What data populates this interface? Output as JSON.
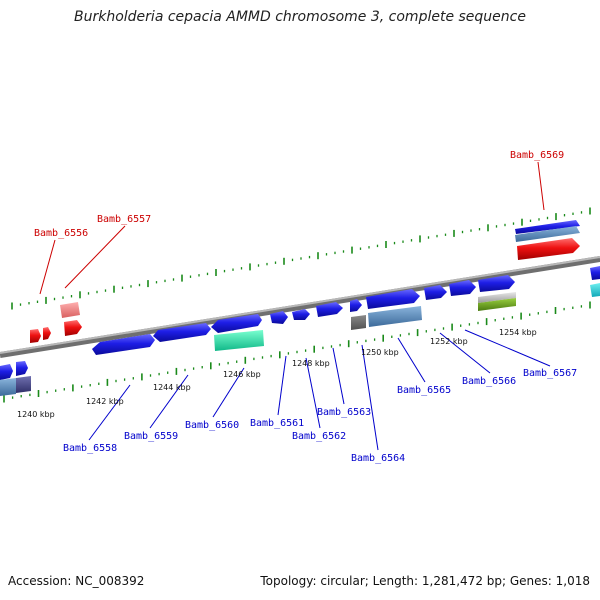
{
  "title": "Burkholderia cepacia AMMD chromosome 3, complete sequence",
  "footer": {
    "accession": "Accession: NC_008392",
    "topology": "Topology: circular; Length: 1,281,472 bp; Genes: 1,018"
  },
  "colors": {
    "backbone": "#808080",
    "forward_gene": "#1e1ee6",
    "reverse_gene": "#1e1ee6",
    "highlight_gene": "#ee1111",
    "tick": "#1a8a1a",
    "gene_label": "#0000cc",
    "highlight_label": "#cc0000"
  },
  "scale_labels": [
    "1240 kbp",
    "1242 kbp",
    "1244 kbp",
    "1246 kbp",
    "1248 kbp",
    "1250 kbp",
    "1252 kbp",
    "1254 kbp"
  ],
  "gene_labels": [
    {
      "name": "Bamb_6556",
      "highlight": true
    },
    {
      "name": "Bamb_6557",
      "highlight": true
    },
    {
      "name": "Bamb_6569",
      "highlight": true
    },
    {
      "name": "Bamb_6558",
      "highlight": false
    },
    {
      "name": "Bamb_6559",
      "highlight": false
    },
    {
      "name": "Bamb_6560",
      "highlight": false
    },
    {
      "name": "Bamb_6561",
      "highlight": false
    },
    {
      "name": "Bamb_6562",
      "highlight": false
    },
    {
      "name": "Bamb_6563",
      "highlight": false
    },
    {
      "name": "Bamb_6564",
      "highlight": false
    },
    {
      "name": "Bamb_6565",
      "highlight": false
    },
    {
      "name": "Bamb_6566",
      "highlight": false
    },
    {
      "name": "Bamb_6567",
      "highlight": false
    }
  ]
}
